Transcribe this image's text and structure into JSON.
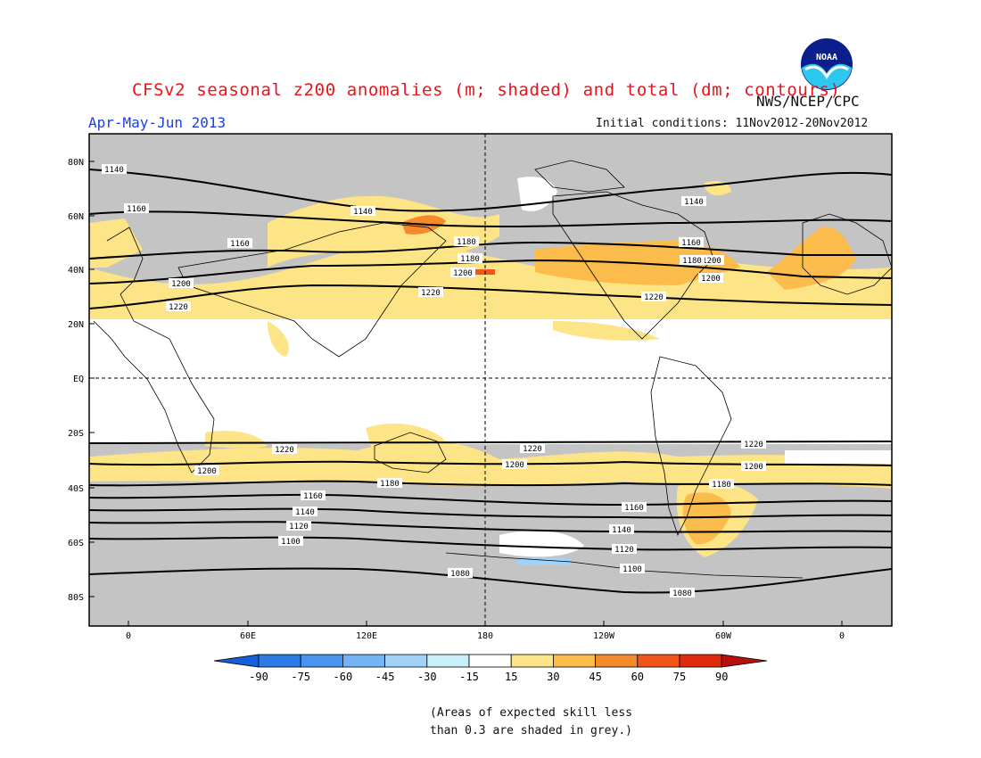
{
  "title": "CFSv2 seasonal z200 anomalies (m; shaded) and total (dm; contours)",
  "period": "Apr-May-Jun 2013",
  "initial_conditions": "Initial conditions: 11Nov2012-20Nov2012",
  "agency": "NWS/NCEP/CPC",
  "logo_text": "NOAA",
  "lat_labels": [
    "80N",
    "60N",
    "40N",
    "20N",
    "EQ",
    "20S",
    "40S",
    "60S",
    "80S"
  ],
  "lon_labels": [
    "0",
    "60E",
    "120E",
    "180",
    "120W",
    "60W",
    "0"
  ],
  "colorbar": {
    "labels": [
      "-90",
      "-75",
      "-60",
      "-45",
      "-30",
      "-15",
      "15",
      "30",
      "45",
      "60",
      "75",
      "90"
    ],
    "colors": [
      "#1560d8",
      "#2b7ae6",
      "#4a93ee",
      "#74b4f4",
      "#a0d2fa",
      "#c8f0f8",
      "#ffffff",
      "#fde486",
      "#fbbc4c",
      "#f58a2a",
      "#f0561a",
      "#e02a10",
      "#b80e0e"
    ]
  },
  "note_line1": "(Areas of expected skill less",
  "note_line2": "than 0.3 are shaded in grey.)",
  "contour_labels": [
    "1140",
    "1140",
    "1160",
    "1140",
    "1160",
    "1180",
    "1160",
    "1180",
    "1200",
    "1200",
    "1200",
    "1200",
    "1180",
    "1220",
    "1220",
    "1220",
    "1220",
    "1220",
    "1220",
    "1200",
    "1200",
    "1200",
    "1180",
    "1180",
    "1160",
    "1160",
    "1140",
    "1140",
    "1120",
    "1120",
    "1100",
    "1100",
    "1080",
    "1080"
  ],
  "colors": {
    "title": "#e8141a",
    "period": "#1f3fe0",
    "grey": "#c4c4c4",
    "pale_yellow": "#fde486",
    "orange": "#fbbc4c",
    "dark_orange": "#f58a2a",
    "red_orange": "#f0561a",
    "light_blue": "#a0d2fa"
  }
}
